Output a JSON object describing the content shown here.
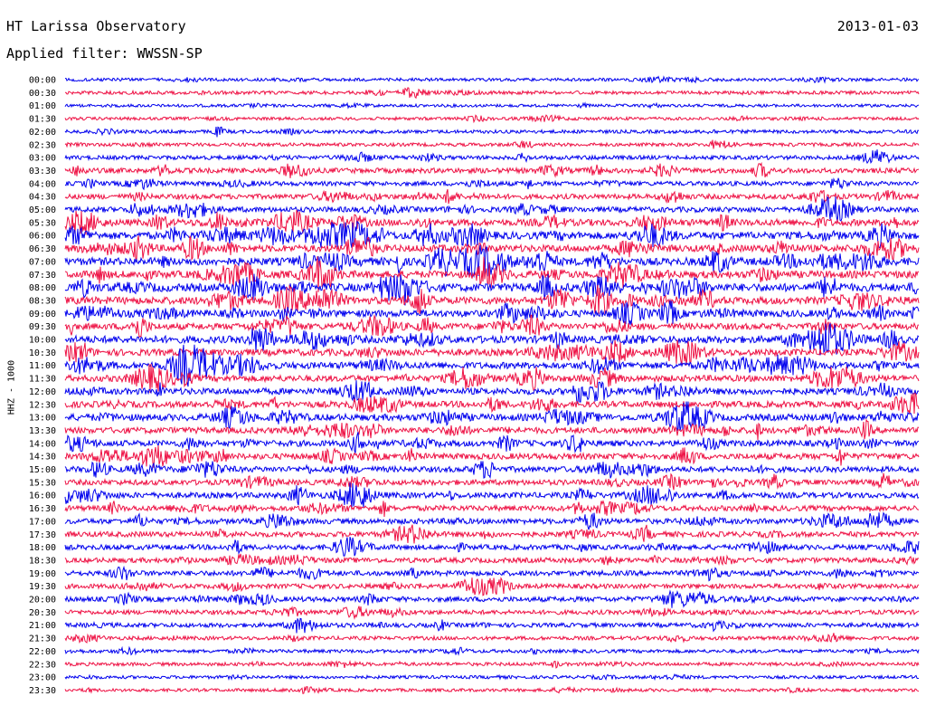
{
  "header": {
    "station": "HT Larissa Observatory",
    "date": "2013-01-03",
    "filter_label": "Applied filter: WWSSN-SP"
  },
  "chart_data": {
    "type": "line",
    "title": "HT Larissa Observatory",
    "ylabel": "HHZ - 1000",
    "time_labels": [
      "00:00",
      "00:30",
      "01:00",
      "01:30",
      "02:00",
      "02:30",
      "03:00",
      "03:30",
      "04:00",
      "04:30",
      "05:00",
      "05:30",
      "06:00",
      "06:30",
      "07:00",
      "07:30",
      "08:00",
      "08:30",
      "09:00",
      "09:30",
      "10:00",
      "10:30",
      "11:00",
      "11:30",
      "12:00",
      "12:30",
      "13:00",
      "13:30",
      "14:00",
      "14:30",
      "15:00",
      "15:30",
      "16:00",
      "16:30",
      "17:00",
      "17:30",
      "18:00",
      "18:30",
      "19:00",
      "19:30",
      "20:00",
      "20:30",
      "21:00",
      "21:30",
      "22:00",
      "22:30",
      "23:00",
      "23:30"
    ],
    "trace_colors": [
      "#0000ee",
      "#ee1144"
    ],
    "relative_activity": [
      0.15,
      0.2,
      0.12,
      0.15,
      0.2,
      0.2,
      0.3,
      0.45,
      0.35,
      0.45,
      0.5,
      0.7,
      0.8,
      0.75,
      0.85,
      0.8,
      0.9,
      0.8,
      0.75,
      0.65,
      0.8,
      0.7,
      0.7,
      0.65,
      0.65,
      0.65,
      0.7,
      0.6,
      0.6,
      0.6,
      0.55,
      0.5,
      0.55,
      0.5,
      0.5,
      0.5,
      0.45,
      0.45,
      0.45,
      0.4,
      0.45,
      0.35,
      0.35,
      0.25,
      0.2,
      0.2,
      0.15,
      0.15
    ],
    "grid": false,
    "legend": "none"
  }
}
